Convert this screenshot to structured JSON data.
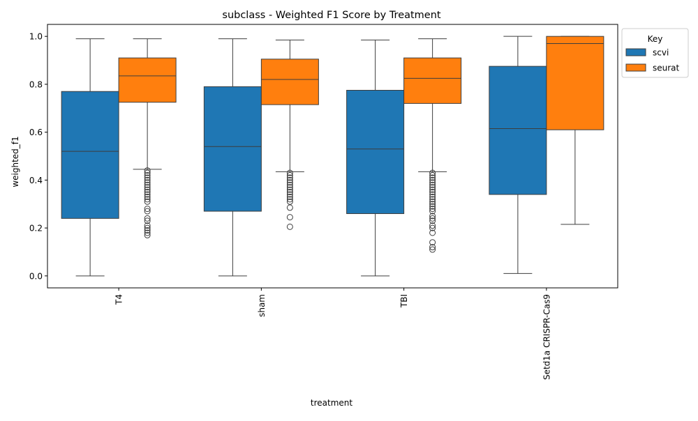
{
  "chart_data": {
    "type": "box",
    "title": "subclass - Weighted F1 Score by Treatment",
    "xlabel": "treatment",
    "ylabel": "weighted_f1",
    "ylim": [
      -0.05,
      1.05
    ],
    "yticks": [
      0.0,
      0.2,
      0.4,
      0.6,
      0.8,
      1.0
    ],
    "ytick_labels": [
      "0.0",
      "0.2",
      "0.4",
      "0.6",
      "0.8",
      "1.0"
    ],
    "categories": [
      "T4",
      "sham",
      "TBI",
      "Setd1a CRISPR-Cas9"
    ],
    "x_tick_rotation": "vertical",
    "grid": false,
    "legend": {
      "title": "Key",
      "position": "outside-top-right"
    },
    "series": [
      {
        "name": "scvi",
        "color": "#1f77b4",
        "boxes": [
          {
            "whislo": 0.0,
            "q1": 0.24,
            "med": 0.52,
            "q3": 0.77,
            "whishi": 0.99,
            "fliers": []
          },
          {
            "whislo": 0.0,
            "q1": 0.27,
            "med": 0.54,
            "q3": 0.79,
            "whishi": 0.99,
            "fliers": []
          },
          {
            "whislo": 0.0,
            "q1": 0.26,
            "med": 0.53,
            "q3": 0.775,
            "whishi": 0.985,
            "fliers": []
          },
          {
            "whislo": 0.01,
            "q1": 0.34,
            "med": 0.615,
            "q3": 0.875,
            "whishi": 1.0,
            "fliers": []
          }
        ]
      },
      {
        "name": "seurat",
        "color": "#ff7f0e",
        "boxes": [
          {
            "whislo": 0.445,
            "q1": 0.725,
            "med": 0.835,
            "q3": 0.91,
            "whishi": 0.99,
            "fliers": [
              0.44,
              0.43,
              0.42,
              0.41,
              0.4,
              0.39,
              0.38,
              0.37,
              0.36,
              0.35,
              0.34,
              0.33,
              0.32,
              0.31,
              0.28,
              0.27,
              0.24,
              0.23,
              0.21,
              0.2,
              0.19,
              0.18,
              0.17
            ]
          },
          {
            "whislo": 0.435,
            "q1": 0.715,
            "med": 0.82,
            "q3": 0.905,
            "whishi": 0.985,
            "fliers": [
              0.43,
              0.42,
              0.41,
              0.4,
              0.39,
              0.38,
              0.37,
              0.36,
              0.35,
              0.34,
              0.33,
              0.32,
              0.31,
              0.285,
              0.245,
              0.205
            ]
          },
          {
            "whislo": 0.435,
            "q1": 0.72,
            "med": 0.825,
            "q3": 0.91,
            "whishi": 0.99,
            "fliers": [
              0.43,
              0.42,
              0.41,
              0.4,
              0.39,
              0.38,
              0.37,
              0.36,
              0.35,
              0.34,
              0.33,
              0.32,
              0.31,
              0.3,
              0.29,
              0.28,
              0.27,
              0.25,
              0.24,
              0.23,
              0.21,
              0.2,
              0.18,
              0.14,
              0.12,
              0.11
            ]
          },
          {
            "whislo": 0.215,
            "q1": 0.61,
            "med": 0.97,
            "q3": 1.0,
            "whishi": 1.0,
            "fliers": []
          }
        ]
      }
    ]
  }
}
